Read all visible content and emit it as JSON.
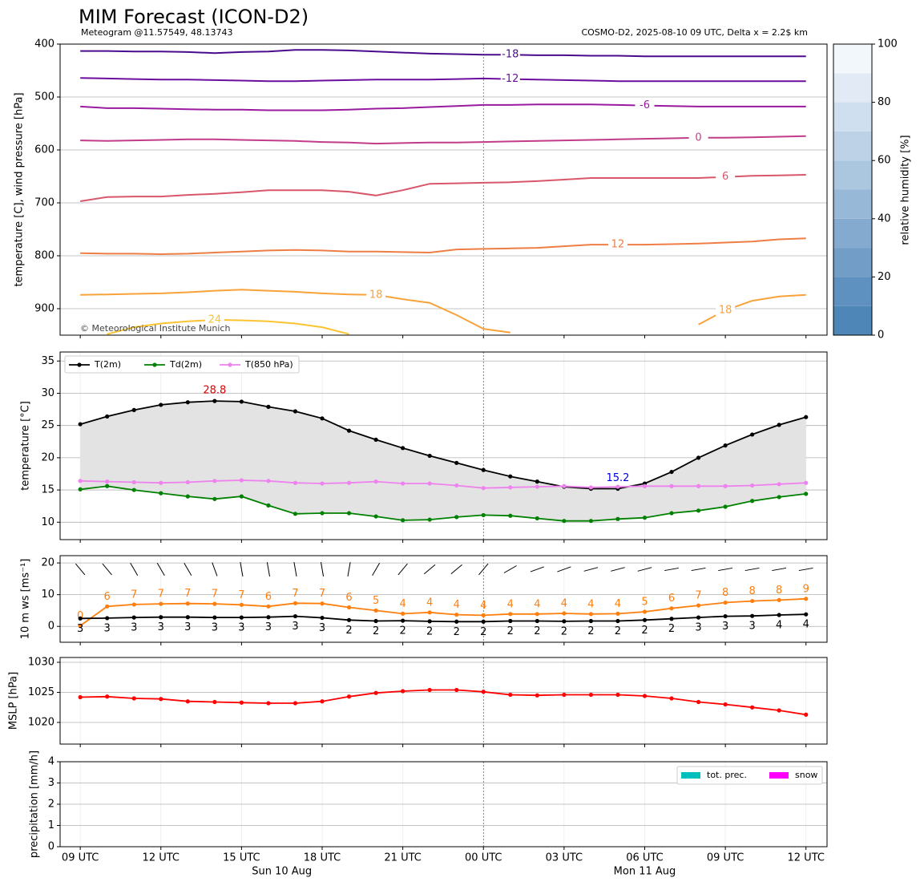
{
  "time": {
    "x": [
      "2025-08-10T09:00",
      "2025-08-10T10:00",
      "2025-08-10T11:00",
      "2025-08-10T12:00",
      "2025-08-10T13:00",
      "2025-08-10T14:00",
      "2025-08-10T15:00",
      "2025-08-10T16:00",
      "2025-08-10T17:00",
      "2025-08-10T18:00",
      "2025-08-10T19:00",
      "2025-08-10T20:00",
      "2025-08-10T21:00",
      "2025-08-10T22:00",
      "2025-08-10T23:00",
      "2025-08-11T00:00",
      "2025-08-11T01:00",
      "2025-08-11T02:00",
      "2025-08-11T03:00",
      "2025-08-11T04:00",
      "2025-08-11T05:00",
      "2025-08-11T06:00",
      "2025-08-11T07:00",
      "2025-08-11T08:00",
      "2025-08-11T09:00",
      "2025-08-11T10:00",
      "2025-08-11T11:00",
      "2025-08-11T12:00"
    ],
    "xlim": [
      "2025-08-10T08:15",
      "2025-08-11T12:47"
    ],
    "xticks": [
      {
        "value": "2025-08-10T09:00",
        "label": "09 UTC"
      },
      {
        "value": "2025-08-10T12:00",
        "label": "12 UTC"
      },
      {
        "value": "2025-08-10T15:00",
        "label": "15 UTC"
      },
      {
        "value": "2025-08-10T18:00",
        "label": "18 UTC"
      },
      {
        "value": "2025-08-10T21:00",
        "label": "21 UTC"
      },
      {
        "value": "2025-08-11T00:00",
        "label": "00 UTC"
      },
      {
        "value": "2025-08-11T03:00",
        "label": "03 UTC"
      },
      {
        "value": "2025-08-11T06:00",
        "label": "06 UTC"
      },
      {
        "value": "2025-08-11T09:00",
        "label": "09 UTC"
      },
      {
        "value": "2025-08-11T12:00",
        "label": "12 UTC"
      }
    ],
    "date_labels": [
      {
        "value": "2025-08-10T16:30",
        "label": "Sun 10 Aug"
      },
      {
        "value": "2025-08-11T06:00",
        "label": "Mon 11 Aug"
      }
    ],
    "day_lines": [
      "2025-08-11T00:00"
    ]
  },
  "colorbar": {
    "label": "relative humidity [%]",
    "ylim": [
      0,
      100
    ],
    "yticks": [
      0,
      20,
      40,
      60,
      80,
      100
    ],
    "levels": [
      0,
      10,
      20,
      30,
      40,
      50,
      60,
      70,
      80,
      90,
      100
    ],
    "colors": [
      "#4f86b8",
      "#5f91c0",
      "#719dc7",
      "#84aacf",
      "#98b8d7",
      "#abc6df",
      "#bdd2e7",
      "#cfdfef",
      "#e1eaf5",
      "#f2f7fc"
    ]
  },
  "chart_data": [
    {
      "type": "contour",
      "title": "MIM Forecast (ICON-D2)",
      "subtitle": "Meteogram @11.57549, 48.13743",
      "source": "COSMO-D2, 2025-08-10 09 UTC, Delta x = 2.2$ km",
      "annotation": "© Meteorological Institute Munich",
      "ylabel": "temperature [C], wind pressure [hPa]",
      "ylim": [
        950,
        400
      ],
      "yticks": [
        400,
        500,
        600,
        700,
        800,
        900
      ],
      "grid": true,
      "series": [
        {
          "level": -18,
          "color": "#4a0c8c",
          "values": [
            413,
            413,
            414,
            414,
            415,
            417,
            415,
            414,
            411,
            411,
            412,
            414,
            416,
            418,
            419,
            420,
            420,
            421,
            421,
            422,
            422,
            423,
            423,
            423,
            423,
            423,
            423,
            423
          ]
        },
        {
          "level": -12,
          "color": "#6b0ea0",
          "values": [
            464,
            465,
            466,
            467,
            467,
            468,
            469,
            470,
            470,
            469,
            468,
            467,
            467,
            467,
            466,
            465,
            466,
            467,
            468,
            469,
            470,
            470,
            470,
            470,
            470,
            470,
            470,
            470
          ]
        },
        {
          "level": -6,
          "color": "#9a1aa0",
          "values": [
            518,
            521,
            521,
            522,
            523,
            524,
            524,
            525,
            525,
            525,
            524,
            522,
            521,
            519,
            517,
            515,
            515,
            514,
            514,
            514,
            515,
            516,
            517,
            518,
            518,
            518,
            518,
            518
          ]
        },
        {
          "level": 0,
          "color": "#c23c8a",
          "values": [
            582,
            583,
            582,
            581,
            580,
            580,
            581,
            582,
            583,
            585,
            586,
            588,
            587,
            586,
            586,
            585,
            584,
            583,
            582,
            581,
            580,
            579,
            578,
            577,
            577,
            576,
            575,
            574
          ]
        },
        {
          "level": 6,
          "color": "#d8576b",
          "values": [
            697,
            689,
            688,
            688,
            685,
            683,
            680,
            676,
            676,
            676,
            679,
            686,
            676,
            664,
            663,
            662,
            661,
            659,
            656,
            653,
            653,
            653,
            653,
            653,
            651,
            649,
            648,
            647
          ]
        },
        {
          "level": 12,
          "color": "#ee7e45",
          "values": [
            795,
            796,
            796,
            797,
            796,
            794,
            792,
            790,
            789,
            790,
            792,
            792,
            793,
            794,
            788,
            787,
            786,
            785,
            782,
            779,
            779,
            779,
            778,
            777,
            775,
            773,
            769,
            767
          ]
        },
        {
          "level": 18,
          "color": "#f8a23a",
          "values": [
            874,
            873,
            872,
            871,
            869,
            866,
            864,
            866,
            868,
            871,
            873,
            874,
            882,
            889,
            912,
            938,
            945,
            null,
            null,
            null,
            null,
            null,
            null,
            930,
            903,
            885,
            877,
            874
          ]
        },
        {
          "level": 24,
          "color": "#fac32f",
          "values": [
            null,
            948,
            935,
            928,
            924,
            921,
            922,
            924,
            928,
            935,
            948,
            null,
            null,
            null,
            null,
            null,
            null,
            null,
            null,
            null,
            null,
            null,
            null,
            null,
            null,
            null,
            null,
            null
          ]
        }
      ]
    },
    {
      "type": "line",
      "ylabel": "temperature [°C]",
      "ylim": [
        7.3,
        36.4
      ],
      "yticks": [
        10,
        15,
        20,
        25,
        30,
        35
      ],
      "grid": true,
      "legend": "upper left",
      "fill_between": [
        0,
        1
      ],
      "fill_color": "#e3e3e3",
      "series": [
        {
          "name": "T(2m)",
          "color": "#000000",
          "values": [
            25.2,
            26.4,
            27.4,
            28.2,
            28.6,
            28.8,
            28.7,
            27.9,
            27.2,
            26.1,
            24.2,
            22.8,
            21.5,
            20.3,
            19.2,
            18.1,
            17.1,
            16.3,
            15.5,
            15.2,
            15.2,
            16.0,
            17.8,
            20.0,
            21.9,
            23.6,
            25.1,
            26.3
          ]
        },
        {
          "name": "Td(2m)",
          "color": "#008000",
          "values": [
            15.1,
            15.6,
            15.0,
            14.5,
            14.0,
            13.6,
            14.0,
            12.6,
            11.3,
            11.4,
            11.4,
            10.9,
            10.3,
            10.4,
            10.8,
            11.1,
            11.0,
            10.6,
            10.2,
            10.2,
            10.5,
            10.7,
            11.4,
            11.8,
            12.4,
            13.3,
            13.9,
            14.4
          ]
        },
        {
          "name": "T(850 hPa)",
          "color": "#ee82ee",
          "values": [
            16.4,
            16.3,
            16.2,
            16.1,
            16.2,
            16.4,
            16.5,
            16.4,
            16.1,
            16.0,
            16.1,
            16.3,
            16.0,
            16.0,
            15.7,
            15.3,
            15.4,
            15.5,
            15.6,
            15.4,
            15.5,
            15.6,
            15.6,
            15.6,
            15.6,
            15.7,
            15.9,
            16.1
          ]
        }
      ],
      "annotations": [
        {
          "label": "28.8",
          "x": "2025-08-10T14:00",
          "value": 28.8,
          "color": "#e00000"
        },
        {
          "label": "15.2",
          "x": "2025-08-11T05:00",
          "value": 15.2,
          "color": "#0000dd"
        }
      ]
    },
    {
      "type": "line",
      "ylabel": "10 m ws [ms⁻¹]",
      "ylim": [
        -5,
        22.3
      ],
      "yticks": [
        0,
        10,
        20
      ],
      "grid": true,
      "wind_dir": [
        320,
        320,
        330,
        330,
        330,
        340,
        350,
        350,
        350,
        350,
        10,
        30,
        40,
        50,
        50,
        40,
        60,
        70,
        70,
        75,
        75,
        75,
        80,
        80,
        80,
        80,
        80,
        80
      ],
      "series": [
        {
          "color": "#ff7f0e",
          "label_side": "above",
          "values": [
            0.2,
            6.3,
            6.9,
            7.1,
            7.2,
            7.1,
            6.8,
            6.3,
            7.3,
            7.2,
            6.0,
            5.0,
            4.0,
            4.4,
            3.7,
            3.5,
            3.9,
            3.9,
            4.1,
            3.9,
            4.0,
            4.6,
            5.7,
            6.6,
            7.5,
            8.0,
            8.3,
            8.7
          ],
          "value_labels": [
            "0",
            "6",
            "7",
            "7",
            "7",
            "7",
            "7",
            "6",
            "7",
            "7",
            "6",
            "5",
            "4",
            "4",
            "4",
            "4",
            "4",
            "4",
            "4",
            "4",
            "4",
            "5",
            "6",
            "7",
            "8",
            "8",
            "8",
            "9"
          ]
        },
        {
          "color": "#000000",
          "label_side": "below",
          "values": [
            2.5,
            2.6,
            2.8,
            2.9,
            2.9,
            2.8,
            2.8,
            2.9,
            3.2,
            2.7,
            2.0,
            1.7,
            1.8,
            1.6,
            1.5,
            1.5,
            1.7,
            1.7,
            1.6,
            1.7,
            1.7,
            2.0,
            2.4,
            2.8,
            3.2,
            3.3,
            3.6,
            3.8
          ],
          "value_labels": [
            "3",
            "3",
            "3",
            "3",
            "3",
            "3",
            "3",
            "3",
            "3",
            "3",
            "2",
            "2",
            "2",
            "2",
            "2",
            "2",
            "2",
            "2",
            "2",
            "2",
            "2",
            "2",
            "2",
            "3",
            "3",
            "3",
            "4",
            "4"
          ]
        }
      ]
    },
    {
      "type": "line",
      "ylabel": "MSLP [hPa]",
      "ylim": [
        1016.4,
        1030.8
      ],
      "yticks": [
        1020,
        1025,
        1030
      ],
      "grid": true,
      "series": [
        {
          "color": "#ff0000",
          "values": [
            1024.2,
            1024.3,
            1024.0,
            1023.9,
            1023.5,
            1023.4,
            1023.3,
            1023.2,
            1023.2,
            1023.5,
            1024.3,
            1024.9,
            1025.2,
            1025.4,
            1025.4,
            1025.1,
            1024.6,
            1024.5,
            1024.6,
            1024.6,
            1024.6,
            1024.4,
            1024.0,
            1023.4,
            1023.0,
            1022.5,
            1022.0,
            1021.3
          ]
        }
      ]
    },
    {
      "type": "bar",
      "ylabel": "precipitation [mm/h]",
      "ylim": [
        0,
        4
      ],
      "yticks": [
        0,
        1,
        2,
        3,
        4
      ],
      "grid": true,
      "legend": "upper right",
      "series": [
        {
          "name": "tot. prec.",
          "color": "#00bfbf",
          "values": [
            0,
            0,
            0,
            0,
            0,
            0,
            0,
            0,
            0,
            0,
            0,
            0,
            0,
            0,
            0,
            0,
            0,
            0,
            0,
            0,
            0,
            0,
            0,
            0,
            0,
            0,
            0,
            0
          ]
        },
        {
          "name": "snow",
          "color": "#ff00ff",
          "values": [
            0,
            0,
            0,
            0,
            0,
            0,
            0,
            0,
            0,
            0,
            0,
            0,
            0,
            0,
            0,
            0,
            0,
            0,
            0,
            0,
            0,
            0,
            0,
            0,
            0,
            0,
            0,
            0
          ]
        }
      ]
    }
  ]
}
